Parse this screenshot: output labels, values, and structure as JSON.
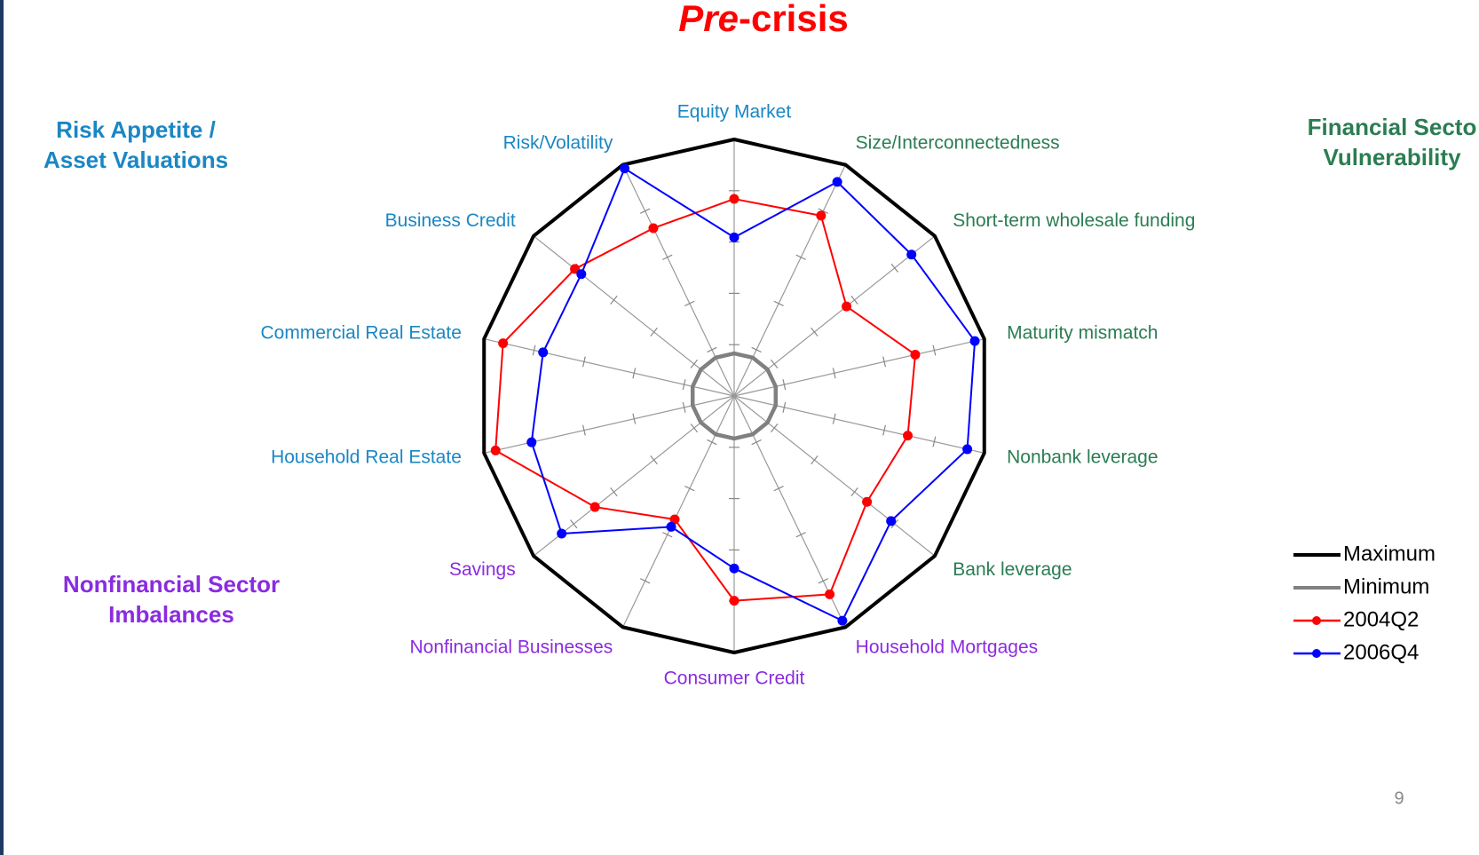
{
  "chart_data": {
    "type": "radar",
    "title": [
      "Pre",
      "-crisis"
    ],
    "categories": [
      "Equity Market",
      "Size/Interconnectedness",
      "Short-term wholesale funding",
      "Maturity mismatch",
      "Nonbank leverage",
      "Bank leverage",
      "Household Mortgages",
      "Consumer Credit",
      "Nonfinancial Businesses",
      "Savings",
      "Household Real Estate",
      "Commercial Real Estate",
      "Business Credit",
      "Risk/Volatility"
    ],
    "category_colors": [
      "#1a87c4",
      "#2b7d52",
      "#2b7d52",
      "#2b7d52",
      "#2b7d52",
      "#2b7d52",
      "#8b2be0",
      "#8b2be0",
      "#8b2be0",
      "#8b2be0",
      "#1a87c4",
      "#1a87c4",
      "#1a87c4",
      "#1a87c4"
    ],
    "rlim": [
      0,
      5
    ],
    "rticks": [
      1,
      2,
      3,
      4
    ],
    "series": [
      {
        "name": "Maximum",
        "color": "#000000",
        "markers": false,
        "values": [
          5,
          5,
          5,
          5,
          5,
          5,
          5,
          5,
          5,
          5,
          5,
          5,
          5,
          5
        ]
      },
      {
        "name": "Minimum",
        "color": "#808080",
        "markers": false,
        "values": [
          0.83,
          0.83,
          0.83,
          0.83,
          0.83,
          0.83,
          0.83,
          0.83,
          0.83,
          0.83,
          0.83,
          0.83,
          0.83,
          0.83
        ]
      },
      {
        "name": "2004Q2",
        "color": "#ff0000",
        "markers": true,
        "values": [
          3.84,
          3.9,
          2.8,
          3.62,
          3.47,
          3.31,
          4.29,
          3.99,
          2.67,
          3.47,
          4.77,
          4.62,
          3.97,
          3.63
        ]
      },
      {
        "name": "2006Q4",
        "color": "#0000ff",
        "markers": true,
        "values": [
          3.09,
          4.63,
          4.42,
          4.81,
          4.66,
          3.91,
          4.86,
          3.36,
          2.83,
          4.3,
          4.05,
          3.82,
          3.81,
          4.92
        ]
      }
    ],
    "groups": [
      {
        "lines": [
          "Risk Appetite /",
          "Asset Valuations"
        ],
        "color": "#1a87c4"
      },
      {
        "lines": [
          "Financial Secto",
          "Vulnerability"
        ],
        "color": "#2b7d52"
      },
      {
        "lines": [
          "Nonfinancial Sector",
          "Imbalances"
        ],
        "color": "#8b2be0"
      }
    ],
    "legend": "right"
  },
  "page_number": "9"
}
